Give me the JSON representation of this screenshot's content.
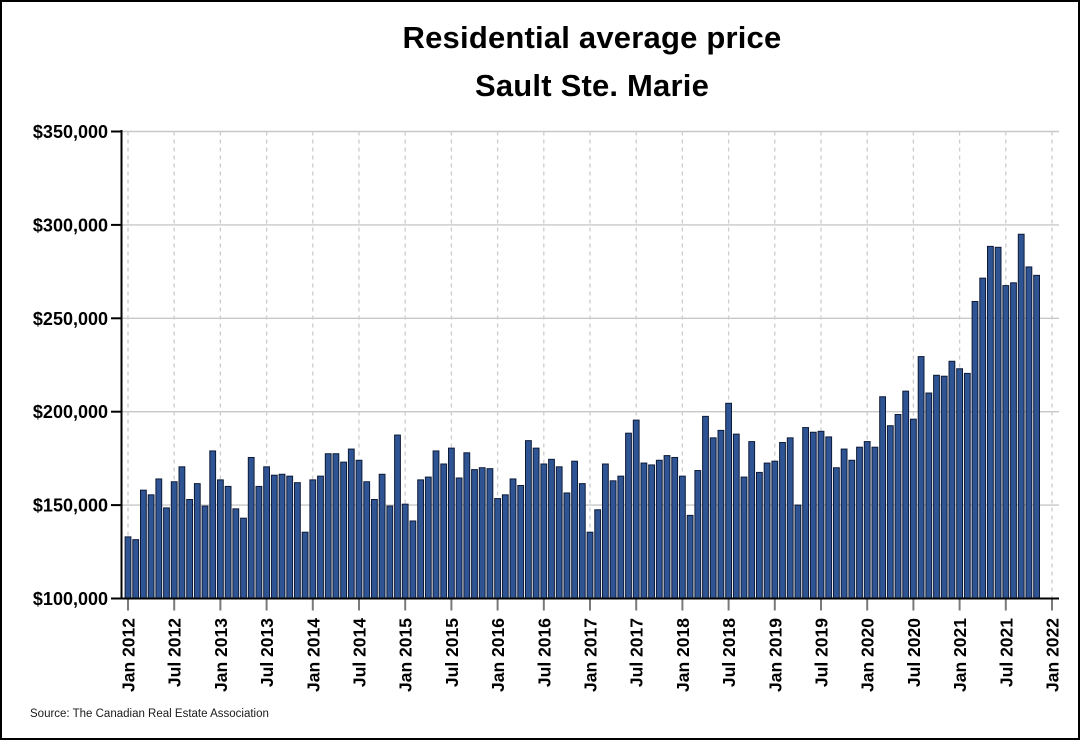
{
  "title": {
    "line1": "Residential average price",
    "line2": "Sault Ste. Marie"
  },
  "source": "Source: The Canadian Real Estate Association",
  "chart_data": {
    "type": "bar",
    "title": "Residential average price Sault Ste. Marie",
    "xlabel": "",
    "ylabel": "",
    "ylim": [
      100000,
      350000
    ],
    "y_ticks": [
      100000,
      150000,
      200000,
      250000,
      300000,
      350000
    ],
    "y_tick_labels": [
      "$100,000",
      "$150,000",
      "$200,000",
      "$250,000",
      "$300,000",
      "$350,000"
    ],
    "x_tick_labels": [
      "Jan 2012",
      "Jul 2012",
      "Jan 2013",
      "Jul 2013",
      "Jan 2014",
      "Jul 2014",
      "Jan 2015",
      "Jul 2015",
      "Jan 2016",
      "Jul 2016",
      "Jan 2017",
      "Jul 2017",
      "Jan 2018",
      "Jul 2018",
      "Jan 2019",
      "Jul 2019",
      "Jan 2020",
      "Jul 2020",
      "Jan 2021",
      "Jul 2021",
      "Jan 2022"
    ],
    "x_tick_interval_months": 6,
    "grid": true,
    "legend": null,
    "bar_color": "#2f5493",
    "bar_edge_color": "#0e1b38",
    "grid_color": "#c8c8c8",
    "vgrid_color": "#cccccc",
    "axis_color": "#000000",
    "x_tick_color": "#7a7a7a",
    "x": [
      "Jan 2012",
      "Feb 2012",
      "Mar 2012",
      "Apr 2012",
      "May 2012",
      "Jun 2012",
      "Jul 2012",
      "Aug 2012",
      "Sep 2012",
      "Oct 2012",
      "Nov 2012",
      "Dec 2012",
      "Jan 2013",
      "Feb 2013",
      "Mar 2013",
      "Apr 2013",
      "May 2013",
      "Jun 2013",
      "Jul 2013",
      "Aug 2013",
      "Sep 2013",
      "Oct 2013",
      "Nov 2013",
      "Dec 2013",
      "Jan 2014",
      "Feb 2014",
      "Mar 2014",
      "Apr 2014",
      "May 2014",
      "Jun 2014",
      "Jul 2014",
      "Aug 2014",
      "Sep 2014",
      "Oct 2014",
      "Nov 2014",
      "Dec 2014",
      "Jan 2015",
      "Feb 2015",
      "Mar 2015",
      "Apr 2015",
      "May 2015",
      "Jun 2015",
      "Jul 2015",
      "Aug 2015",
      "Sep 2015",
      "Oct 2015",
      "Nov 2015",
      "Dec 2015",
      "Jan 2016",
      "Feb 2016",
      "Mar 2016",
      "Apr 2016",
      "May 2016",
      "Jun 2016",
      "Jul 2016",
      "Aug 2016",
      "Sep 2016",
      "Oct 2016",
      "Nov 2016",
      "Dec 2016",
      "Jan 2017",
      "Feb 2017",
      "Mar 2017",
      "Apr 2017",
      "May 2017",
      "Jun 2017",
      "Jul 2017",
      "Aug 2017",
      "Sep 2017",
      "Oct 2017",
      "Nov 2017",
      "Dec 2017",
      "Jan 2018",
      "Feb 2018",
      "Mar 2018",
      "Apr 2018",
      "May 2018",
      "Jun 2018",
      "Jul 2018",
      "Aug 2018",
      "Sep 2018",
      "Oct 2018",
      "Nov 2018",
      "Dec 2018",
      "Jan 2019",
      "Feb 2019",
      "Mar 2019",
      "Apr 2019",
      "May 2019",
      "Jun 2019",
      "Jul 2019",
      "Aug 2019",
      "Sep 2019",
      "Oct 2019",
      "Nov 2019",
      "Dec 2019",
      "Jan 2020",
      "Feb 2020",
      "Mar 2020",
      "Apr 2020",
      "May 2020",
      "Jun 2020",
      "Jul 2020",
      "Aug 2020",
      "Sep 2020",
      "Oct 2020",
      "Nov 2020",
      "Dec 2020",
      "Jan 2021",
      "Feb 2021",
      "Mar 2021",
      "Apr 2021",
      "May 2021",
      "Jun 2021",
      "Jul 2021",
      "Aug 2021",
      "Sep 2021",
      "Oct 2021",
      "Nov 2021"
    ],
    "values": [
      133000,
      131500,
      158000,
      155500,
      164000,
      148500,
      162500,
      170500,
      153000,
      161500,
      149500,
      179000,
      163500,
      160000,
      148000,
      143000,
      175500,
      160000,
      170500,
      166000,
      166500,
      165500,
      162000,
      135500,
      163500,
      165500,
      177500,
      177500,
      173000,
      180000,
      174000,
      162500,
      153000,
      166500,
      149500,
      187500,
      150500,
      141500,
      163500,
      165000,
      179000,
      172000,
      180500,
      164500,
      178000,
      169000,
      170000,
      169500,
      153500,
      155500,
      164000,
      160500,
      184500,
      180500,
      172000,
      174500,
      170500,
      156500,
      173500,
      161500,
      135500,
      147500,
      172000,
      163000,
      165500,
      188500,
      195500,
      172500,
      171500,
      174000,
      176500,
      175500,
      165500,
      144500,
      168500,
      197500,
      186000,
      190000,
      204500,
      188000,
      165000,
      184000,
      167500,
      172500,
      173500,
      183500,
      186000,
      150000,
      191500,
      189000,
      189500,
      186500,
      170000,
      180000,
      174000,
      181000,
      184000,
      181000,
      208000,
      192500,
      198500,
      211000,
      196000,
      229500,
      210000,
      219500,
      219000,
      227000,
      223000,
      220500,
      259000,
      271500,
      288500,
      288000,
      267500,
      269000,
      295000,
      277500,
      273000
    ]
  }
}
